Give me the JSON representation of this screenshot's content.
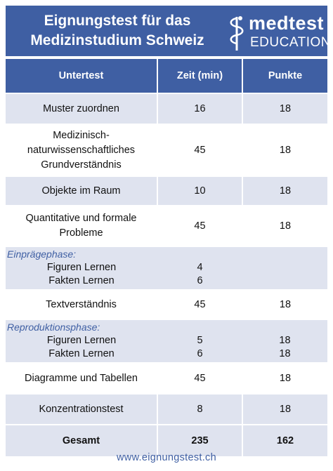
{
  "header": {
    "title_line1": "Eignungstest für das",
    "title_line2": "Medizinstudium Schweiz",
    "logo_top": "medtest",
    "logo_bottom": "EDUCATION",
    "logo_icon": "rod-of-asclepius-icon"
  },
  "table": {
    "headers": [
      "Untertest",
      "Zeit (min)",
      "Punkte"
    ],
    "rows": [
      {
        "name": "Muster zuordnen",
        "time": "16",
        "points": "18"
      },
      {
        "name_lines": [
          "Medizinisch-",
          "naturwissenschaftliches",
          "Grundverständnis"
        ],
        "time": "45",
        "points": "18"
      },
      {
        "name": "Objekte im Raum",
        "time": "10",
        "points": "18"
      },
      {
        "name_lines": [
          "Quantitative und formale",
          "Probleme"
        ],
        "time": "45",
        "points": "18"
      }
    ],
    "phase1": {
      "label": "Einprägephase:",
      "items": [
        {
          "name": "Figuren Lernen",
          "time": "4",
          "points": ""
        },
        {
          "name": "Fakten Lernen",
          "time": "6",
          "points": ""
        }
      ]
    },
    "text_row": {
      "name": "Textverständnis",
      "time": "45",
      "points": "18"
    },
    "phase2": {
      "label": "Reproduktionsphase:",
      "items": [
        {
          "name": "Figuren Lernen",
          "time": "5",
          "points": "18"
        },
        {
          "name": "Fakten Lernen",
          "time": "6",
          "points": "18"
        }
      ]
    },
    "rows_after": [
      {
        "name": "Diagramme und Tabellen",
        "time": "45",
        "points": "18"
      },
      {
        "name": "Konzentrationstest",
        "time": "8",
        "points": "18"
      }
    ],
    "total": {
      "name": "Gesamt",
      "time": "235",
      "points": "162"
    }
  },
  "footer": {
    "url": "www.eignungstest.ch"
  },
  "colors": {
    "accent": "#3f5fa3",
    "row_shade": "#dfe3ef"
  }
}
